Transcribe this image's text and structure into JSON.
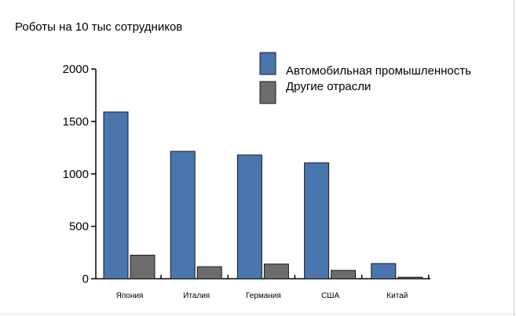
{
  "chart_data": {
    "type": "bar",
    "title": "Роботы на 10 тыс сотрудников",
    "categories": [
      "Япония",
      "Италия",
      "Германия",
      "США",
      "Китай"
    ],
    "series": [
      {
        "name": "Автомобильная промышленность",
        "values": [
          1590,
          1215,
          1180,
          1105,
          145
        ],
        "color": "#4a76ad"
      },
      {
        "name": "Другие отрасли",
        "values": [
          225,
          115,
          140,
          80,
          15
        ],
        "color": "#6b6c6e"
      }
    ],
    "yticks": [
      "0",
      "500",
      "1000",
      "1500",
      "2000"
    ],
    "ylim": [
      0,
      2000
    ],
    "grid": false,
    "legend": "top-right",
    "xlabel": "",
    "ylabel": ""
  }
}
